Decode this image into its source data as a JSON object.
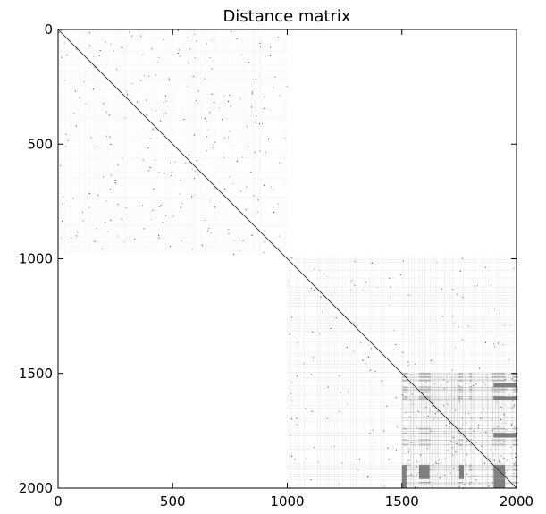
{
  "chart_data": {
    "type": "heatmap",
    "title": "Distance matrix",
    "xlabel": "",
    "ylabel": "",
    "n": 2000,
    "xlim": [
      0,
      2000
    ],
    "ylim": [
      2000,
      0
    ],
    "x_ticks": [
      0,
      500,
      1000,
      1500,
      2000
    ],
    "y_ticks": [
      0,
      500,
      1000,
      1500,
      2000
    ],
    "x_tick_labels": [
      "0",
      "500",
      "1000",
      "1500",
      "2000"
    ],
    "y_tick_labels": [
      "0",
      "500",
      "1000",
      "1500",
      "2000"
    ],
    "colormap": "grayscale, white = large distance, dark = small distance",
    "colors": {
      "background": "#ffffff",
      "diagonal": "#444444",
      "cluster_a": "#e2e2e2",
      "cluster_b": "#bdbdbd",
      "dense": "#7f7f7f"
    },
    "blocks": [
      {
        "rows": [
          0,
          980
        ],
        "cols": [
          0,
          1000
        ],
        "shade": 0.92
      },
      {
        "rows": [
          990,
          2000
        ],
        "cols": [
          1000,
          2000
        ],
        "shade": 0.82
      },
      {
        "rows": [
          1500,
          2000
        ],
        "cols": [
          1500,
          2000
        ],
        "shade": 0.55
      }
    ],
    "dense_rows": [
      1500,
      1515,
      1530,
      1560,
      1570,
      1580,
      1600,
      1610,
      1740,
      1760,
      1790,
      1810,
      1900,
      1920,
      1950,
      1975
    ],
    "dense_cols": [
      1510,
      1520,
      1580,
      1590,
      1600,
      1610,
      1620,
      1750,
      1760,
      1800,
      1900,
      1910,
      1920,
      1935,
      1945,
      1990,
      2000
    ]
  }
}
